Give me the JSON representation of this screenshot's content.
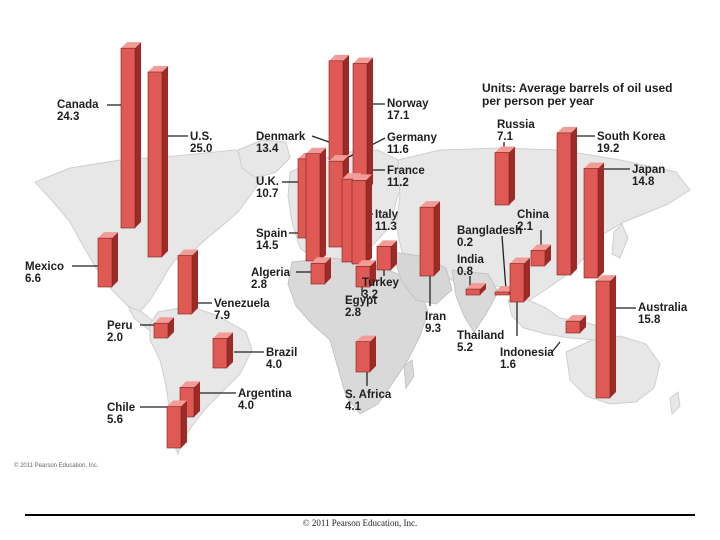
{
  "units_line1": "Units: Average barrels of oil used",
  "units_line2": "per person per year",
  "map_copyright": "© 2011 Pearson Education, Inc.",
  "footer_copyright": "© 2011 Pearson Education, Inc.",
  "colors": {
    "bar_front": "#e05a55",
    "bar_side": "#9c2b27",
    "bar_top": "#f29c97",
    "land": "#e7e7e7",
    "land_dark": "#cfcfcf",
    "ocean": "#ffffff",
    "leader": "#222222"
  },
  "chart_data": {
    "type": "bar",
    "title": "Units: Average barrels of oil used per person per year",
    "unit": "barrels per person per year",
    "series": [
      {
        "name": "Average barrels of oil used per person per year",
        "points": [
          {
            "country": "Canada",
            "value": 24.3
          },
          {
            "country": "U.S.",
            "value": 25.0
          },
          {
            "country": "Mexico",
            "value": 6.6
          },
          {
            "country": "Denmark",
            "value": 13.4
          },
          {
            "country": "U.K.",
            "value": 10.7
          },
          {
            "country": "Spain",
            "value": 14.5
          },
          {
            "country": "Norway",
            "value": 17.1
          },
          {
            "country": "Germany",
            "value": 11.6
          },
          {
            "country": "France",
            "value": 11.2
          },
          {
            "country": "Italy",
            "value": 11.3
          },
          {
            "country": "Algeria",
            "value": 2.8
          },
          {
            "country": "Egypt",
            "value": 2.8
          },
          {
            "country": "Turkey",
            "value": 3.2
          },
          {
            "country": "Iran",
            "value": 9.3
          },
          {
            "country": "Venezuela",
            "value": 7.9
          },
          {
            "country": "Peru",
            "value": 2.0
          },
          {
            "country": "Brazil",
            "value": 4.0
          },
          {
            "country": "Argentina",
            "value": 4.0
          },
          {
            "country": "Chile",
            "value": 5.6
          },
          {
            "country": "S. Africa",
            "value": 4.1
          },
          {
            "country": "Russia",
            "value": 7.1
          },
          {
            "country": "South Korea",
            "value": 19.2
          },
          {
            "country": "Japan",
            "value": 14.8
          },
          {
            "country": "China",
            "value": 2.1
          },
          {
            "country": "Bangladesh",
            "value": 0.2
          },
          {
            "country": "India",
            "value": 0.8
          },
          {
            "country": "Thailand",
            "value": 5.2
          },
          {
            "country": "Indonesia",
            "value": 1.6
          },
          {
            "country": "Australia",
            "value": 15.8
          }
        ]
      }
    ]
  }
}
